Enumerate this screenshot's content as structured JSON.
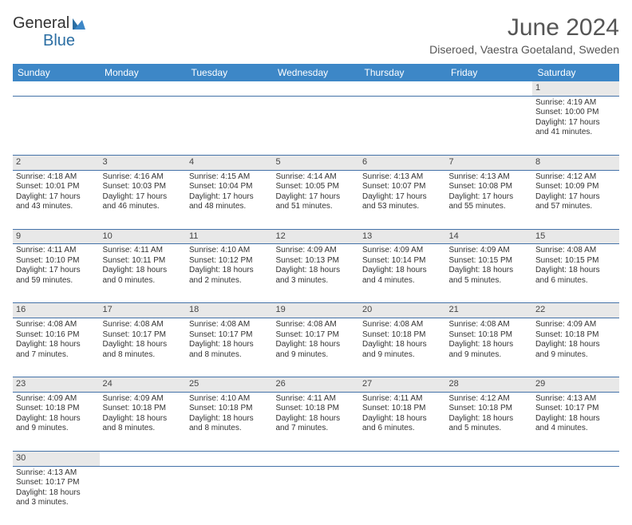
{
  "logo": {
    "text_a": "General",
    "text_b": "Blue"
  },
  "title": "June 2024",
  "location": "Diseroed, Vaestra Goetaland, Sweden",
  "colors": {
    "header_bg": "#3d87c7",
    "header_text": "#ffffff",
    "daynum_bg": "#e8e8e8",
    "row_border": "#4472a8",
    "text": "#333333",
    "logo_blue": "#2b6ea3"
  },
  "day_headers": [
    "Sunday",
    "Monday",
    "Tuesday",
    "Wednesday",
    "Thursday",
    "Friday",
    "Saturday"
  ],
  "weeks": [
    {
      "nums": [
        "",
        "",
        "",
        "",
        "",
        "",
        "1"
      ],
      "cells": [
        null,
        null,
        null,
        null,
        null,
        null,
        {
          "sunrise": "Sunrise: 4:19 AM",
          "sunset": "Sunset: 10:00 PM",
          "day1": "Daylight: 17 hours",
          "day2": "and 41 minutes."
        }
      ]
    },
    {
      "nums": [
        "2",
        "3",
        "4",
        "5",
        "6",
        "7",
        "8"
      ],
      "cells": [
        {
          "sunrise": "Sunrise: 4:18 AM",
          "sunset": "Sunset: 10:01 PM",
          "day1": "Daylight: 17 hours",
          "day2": "and 43 minutes."
        },
        {
          "sunrise": "Sunrise: 4:16 AM",
          "sunset": "Sunset: 10:03 PM",
          "day1": "Daylight: 17 hours",
          "day2": "and 46 minutes."
        },
        {
          "sunrise": "Sunrise: 4:15 AM",
          "sunset": "Sunset: 10:04 PM",
          "day1": "Daylight: 17 hours",
          "day2": "and 48 minutes."
        },
        {
          "sunrise": "Sunrise: 4:14 AM",
          "sunset": "Sunset: 10:05 PM",
          "day1": "Daylight: 17 hours",
          "day2": "and 51 minutes."
        },
        {
          "sunrise": "Sunrise: 4:13 AM",
          "sunset": "Sunset: 10:07 PM",
          "day1": "Daylight: 17 hours",
          "day2": "and 53 minutes."
        },
        {
          "sunrise": "Sunrise: 4:13 AM",
          "sunset": "Sunset: 10:08 PM",
          "day1": "Daylight: 17 hours",
          "day2": "and 55 minutes."
        },
        {
          "sunrise": "Sunrise: 4:12 AM",
          "sunset": "Sunset: 10:09 PM",
          "day1": "Daylight: 17 hours",
          "day2": "and 57 minutes."
        }
      ]
    },
    {
      "nums": [
        "9",
        "10",
        "11",
        "12",
        "13",
        "14",
        "15"
      ],
      "cells": [
        {
          "sunrise": "Sunrise: 4:11 AM",
          "sunset": "Sunset: 10:10 PM",
          "day1": "Daylight: 17 hours",
          "day2": "and 59 minutes."
        },
        {
          "sunrise": "Sunrise: 4:11 AM",
          "sunset": "Sunset: 10:11 PM",
          "day1": "Daylight: 18 hours",
          "day2": "and 0 minutes."
        },
        {
          "sunrise": "Sunrise: 4:10 AM",
          "sunset": "Sunset: 10:12 PM",
          "day1": "Daylight: 18 hours",
          "day2": "and 2 minutes."
        },
        {
          "sunrise": "Sunrise: 4:09 AM",
          "sunset": "Sunset: 10:13 PM",
          "day1": "Daylight: 18 hours",
          "day2": "and 3 minutes."
        },
        {
          "sunrise": "Sunrise: 4:09 AM",
          "sunset": "Sunset: 10:14 PM",
          "day1": "Daylight: 18 hours",
          "day2": "and 4 minutes."
        },
        {
          "sunrise": "Sunrise: 4:09 AM",
          "sunset": "Sunset: 10:15 PM",
          "day1": "Daylight: 18 hours",
          "day2": "and 5 minutes."
        },
        {
          "sunrise": "Sunrise: 4:08 AM",
          "sunset": "Sunset: 10:15 PM",
          "day1": "Daylight: 18 hours",
          "day2": "and 6 minutes."
        }
      ]
    },
    {
      "nums": [
        "16",
        "17",
        "18",
        "19",
        "20",
        "21",
        "22"
      ],
      "cells": [
        {
          "sunrise": "Sunrise: 4:08 AM",
          "sunset": "Sunset: 10:16 PM",
          "day1": "Daylight: 18 hours",
          "day2": "and 7 minutes."
        },
        {
          "sunrise": "Sunrise: 4:08 AM",
          "sunset": "Sunset: 10:17 PM",
          "day1": "Daylight: 18 hours",
          "day2": "and 8 minutes."
        },
        {
          "sunrise": "Sunrise: 4:08 AM",
          "sunset": "Sunset: 10:17 PM",
          "day1": "Daylight: 18 hours",
          "day2": "and 8 minutes."
        },
        {
          "sunrise": "Sunrise: 4:08 AM",
          "sunset": "Sunset: 10:17 PM",
          "day1": "Daylight: 18 hours",
          "day2": "and 9 minutes."
        },
        {
          "sunrise": "Sunrise: 4:08 AM",
          "sunset": "Sunset: 10:18 PM",
          "day1": "Daylight: 18 hours",
          "day2": "and 9 minutes."
        },
        {
          "sunrise": "Sunrise: 4:08 AM",
          "sunset": "Sunset: 10:18 PM",
          "day1": "Daylight: 18 hours",
          "day2": "and 9 minutes."
        },
        {
          "sunrise": "Sunrise: 4:09 AM",
          "sunset": "Sunset: 10:18 PM",
          "day1": "Daylight: 18 hours",
          "day2": "and 9 minutes."
        }
      ]
    },
    {
      "nums": [
        "23",
        "24",
        "25",
        "26",
        "27",
        "28",
        "29"
      ],
      "cells": [
        {
          "sunrise": "Sunrise: 4:09 AM",
          "sunset": "Sunset: 10:18 PM",
          "day1": "Daylight: 18 hours",
          "day2": "and 9 minutes."
        },
        {
          "sunrise": "Sunrise: 4:09 AM",
          "sunset": "Sunset: 10:18 PM",
          "day1": "Daylight: 18 hours",
          "day2": "and 8 minutes."
        },
        {
          "sunrise": "Sunrise: 4:10 AM",
          "sunset": "Sunset: 10:18 PM",
          "day1": "Daylight: 18 hours",
          "day2": "and 8 minutes."
        },
        {
          "sunrise": "Sunrise: 4:11 AM",
          "sunset": "Sunset: 10:18 PM",
          "day1": "Daylight: 18 hours",
          "day2": "and 7 minutes."
        },
        {
          "sunrise": "Sunrise: 4:11 AM",
          "sunset": "Sunset: 10:18 PM",
          "day1": "Daylight: 18 hours",
          "day2": "and 6 minutes."
        },
        {
          "sunrise": "Sunrise: 4:12 AM",
          "sunset": "Sunset: 10:18 PM",
          "day1": "Daylight: 18 hours",
          "day2": "and 5 minutes."
        },
        {
          "sunrise": "Sunrise: 4:13 AM",
          "sunset": "Sunset: 10:17 PM",
          "day1": "Daylight: 18 hours",
          "day2": "and 4 minutes."
        }
      ]
    },
    {
      "nums": [
        "30",
        "",
        "",
        "",
        "",
        "",
        ""
      ],
      "cells": [
        {
          "sunrise": "Sunrise: 4:13 AM",
          "sunset": "Sunset: 10:17 PM",
          "day1": "Daylight: 18 hours",
          "day2": "and 3 minutes."
        },
        null,
        null,
        null,
        null,
        null,
        null
      ]
    }
  ]
}
